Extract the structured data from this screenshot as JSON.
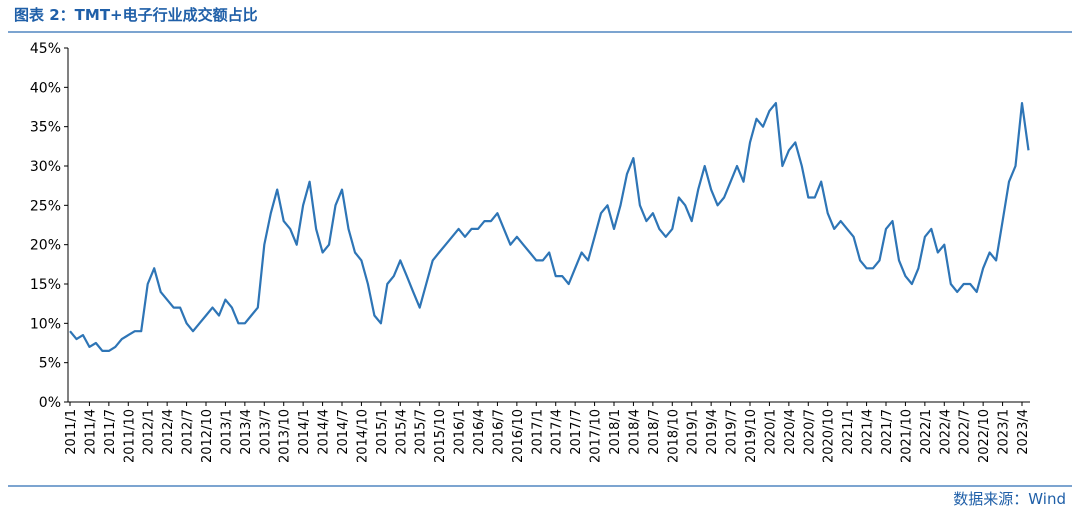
{
  "chart_data": {
    "type": "line",
    "title": "图表 2：TMT+电子行业成交额占比",
    "source": "数据来源：Wind",
    "categories": [
      "2011/1",
      null,
      null,
      "2011/4",
      null,
      null,
      "2011/7",
      null,
      null,
      "2011/10",
      null,
      null,
      "2012/1",
      null,
      null,
      "2012/4",
      null,
      null,
      "2012/7",
      null,
      null,
      "2012/10",
      null,
      null,
      "2013/1",
      null,
      null,
      "2013/4",
      null,
      null,
      "2013/7",
      null,
      null,
      "2013/10",
      null,
      null,
      "2014/1",
      null,
      null,
      "2014/4",
      null,
      null,
      "2014/7",
      null,
      null,
      "2014/10",
      null,
      null,
      "2015/1",
      null,
      null,
      "2015/4",
      null,
      null,
      "2015/7",
      null,
      null,
      "2015/10",
      null,
      null,
      "2016/1",
      null,
      null,
      "2016/4",
      null,
      null,
      "2016/7",
      null,
      null,
      "2016/10",
      null,
      null,
      "2017/1",
      null,
      null,
      "2017/4",
      null,
      null,
      "2017/7",
      null,
      null,
      "2017/10",
      null,
      null,
      "2018/1",
      null,
      null,
      "2018/4",
      null,
      null,
      "2018/7",
      null,
      null,
      "2018/10",
      null,
      null,
      "2019/1",
      null,
      null,
      "2019/4",
      null,
      null,
      "2019/7",
      null,
      null,
      "2019/10",
      null,
      null,
      "2020/1",
      null,
      null,
      "2020/4",
      null,
      null,
      "2020/7",
      null,
      null,
      "2020/10",
      null,
      null,
      "2021/1",
      null,
      null,
      "2021/4",
      null,
      null,
      "2021/7",
      null,
      null,
      "2021/10",
      null,
      null,
      "2022/1",
      null,
      null,
      "2022/4",
      null,
      null,
      "2022/7",
      null,
      null,
      "2022/10",
      null,
      null,
      "2023/1",
      null,
      null,
      "2023/4",
      null
    ],
    "series": [
      {
        "name": "TMT+电子行业成交额占比",
        "color": "#2e75b6",
        "values": [
          9,
          8,
          8.5,
          7,
          7.5,
          6.5,
          6.5,
          7,
          8,
          8.5,
          9,
          9,
          15,
          17,
          14,
          13,
          12,
          12,
          10,
          9,
          10,
          11,
          12,
          11,
          13,
          12,
          10,
          10,
          11,
          12,
          20,
          24,
          27,
          23,
          22,
          20,
          25,
          28,
          22,
          19,
          20,
          25,
          27,
          22,
          19,
          18,
          15,
          11,
          10,
          15,
          16,
          18,
          16,
          14,
          12,
          15,
          18,
          19,
          20,
          21,
          22,
          21,
          22,
          22,
          23,
          23,
          24,
          22,
          20,
          21,
          20,
          19,
          18,
          18,
          19,
          16,
          16,
          15,
          17,
          19,
          18,
          21,
          24,
          25,
          22,
          25,
          29,
          31,
          25,
          23,
          24,
          22,
          21,
          22,
          26,
          25,
          23,
          27,
          30,
          27,
          25,
          26,
          28,
          30,
          28,
          33,
          36,
          35,
          37,
          38,
          30,
          32,
          33,
          30,
          26,
          26,
          28,
          24,
          22,
          23,
          22,
          21,
          18,
          17,
          17,
          18,
          22,
          23,
          18,
          16,
          15,
          17,
          21,
          22,
          19,
          20,
          15,
          14,
          15,
          15,
          14,
          17,
          19,
          18,
          23,
          28,
          30,
          38,
          32
        ]
      }
    ],
    "ylim": [
      0,
      45
    ],
    "yticks": [
      {
        "value": 0,
        "label": "0%"
      },
      {
        "value": 5,
        "label": "5%"
      },
      {
        "value": 10,
        "label": "10%"
      },
      {
        "value": 15,
        "label": "15%"
      },
      {
        "value": 20,
        "label": "20%"
      },
      {
        "value": 25,
        "label": "25%"
      },
      {
        "value": 30,
        "label": "30%"
      },
      {
        "value": 35,
        "label": "35%"
      },
      {
        "value": 40,
        "label": "40%"
      },
      {
        "value": 45,
        "label": "45%"
      }
    ]
  }
}
